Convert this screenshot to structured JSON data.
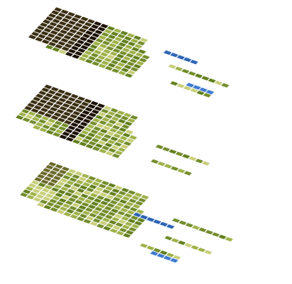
{
  "scene": {
    "view": "isometric-voxel-stack",
    "layer_count": 3,
    "palette": {
      "light_grass": "#c8cf7a",
      "mid_grass": "#9fb24a",
      "dark_grass": "#748d2c",
      "deep_grass": "#64801f",
      "soil_olive": "#6b6a2b",
      "soil_dark": "#3b2f13",
      "soil_black": "#1d1206",
      "water": "#2d64b3",
      "water_light": "#3f7ad0"
    },
    "layers": [
      {
        "name": "top",
        "grass_variation": 0.62,
        "soil_regions": [
          {
            "i_from": 0,
            "i_to": 6,
            "j_from": 0,
            "j_to": 10,
            "shade": "soil_dark"
          },
          {
            "i_from": 6,
            "i_to": 8,
            "j_from": 0,
            "j_to": 16,
            "shade": "soil_black"
          }
        ],
        "water_groups": [
          {
            "tiles": 5,
            "shade": "water"
          },
          {
            "tiles": 4,
            "shade": "water_light"
          }
        ]
      },
      {
        "name": "middle",
        "grass_variation": 0.55,
        "soil_regions": [
          {
            "i_from": 0,
            "i_to": 7,
            "j_from": 0,
            "j_to": 8,
            "shade": "soil_dark"
          },
          {
            "i_from": 7,
            "i_to": 9,
            "j_from": 0,
            "j_to": 14,
            "shade": "soil_black"
          }
        ],
        "water_groups": []
      },
      {
        "name": "bottom",
        "grass_variation": 0.5,
        "soil_regions": [
          {
            "i_from": 0,
            "i_to": 3,
            "j_from": 0,
            "j_to": 6,
            "shade": "soil_olive"
          }
        ],
        "water_groups": [
          {
            "tiles": 6,
            "shade": "water"
          },
          {
            "tiles": 4,
            "shade": "water_light"
          }
        ]
      }
    ]
  }
}
